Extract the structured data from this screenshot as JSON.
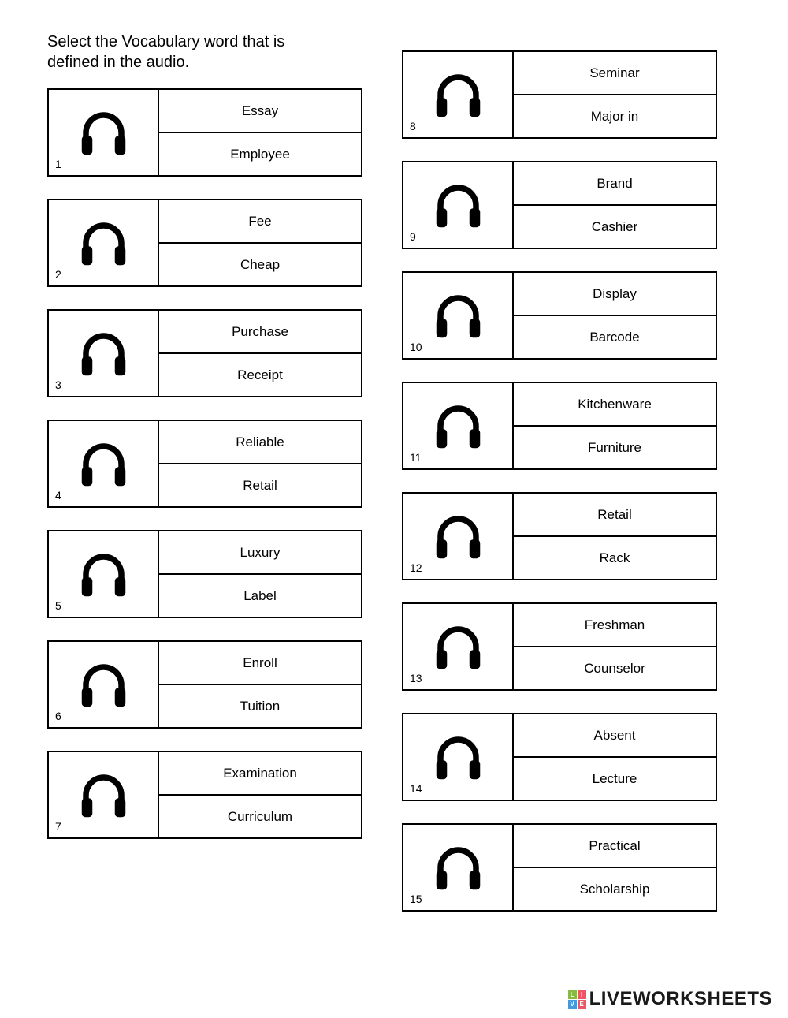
{
  "instruction": "Select the Vocabulary word that is defined in the audio.",
  "questions": [
    {
      "num": "1",
      "opt1": "Essay",
      "opt2": "Employee"
    },
    {
      "num": "2",
      "opt1": "Fee",
      "opt2": "Cheap"
    },
    {
      "num": "3",
      "opt1": "Purchase",
      "opt2": "Receipt"
    },
    {
      "num": "4",
      "opt1": "Reliable",
      "opt2": "Retail"
    },
    {
      "num": "5",
      "opt1": "Luxury",
      "opt2": "Label"
    },
    {
      "num": "6",
      "opt1": "Enroll",
      "opt2": "Tuition"
    },
    {
      "num": "7",
      "opt1": "Examination",
      "opt2": "Curriculum"
    },
    {
      "num": "8",
      "opt1": "Seminar",
      "opt2": "Major in"
    },
    {
      "num": "9",
      "opt1": "Brand",
      "opt2": "Cashier"
    },
    {
      "num": "10",
      "opt1": "Display",
      "opt2": "Barcode"
    },
    {
      "num": "11",
      "opt1": "Kitchenware",
      "opt2": "Furniture"
    },
    {
      "num": "12",
      "opt1": "Retail",
      "opt2": "Rack"
    },
    {
      "num": "13",
      "opt1": "Freshman",
      "opt2": "Counselor"
    },
    {
      "num": "14",
      "opt1": "Absent",
      "opt2": "Lecture"
    },
    {
      "num": "15",
      "opt1": "Practical",
      "opt2": "Scholarship"
    }
  ],
  "watermark": {
    "badge": [
      "L",
      "I",
      "V",
      "E"
    ],
    "text": "LIVEWORKSHEETS"
  },
  "colors": {
    "text": "#000000",
    "border": "#000000",
    "background": "#ffffff",
    "icon": "#000000"
  }
}
